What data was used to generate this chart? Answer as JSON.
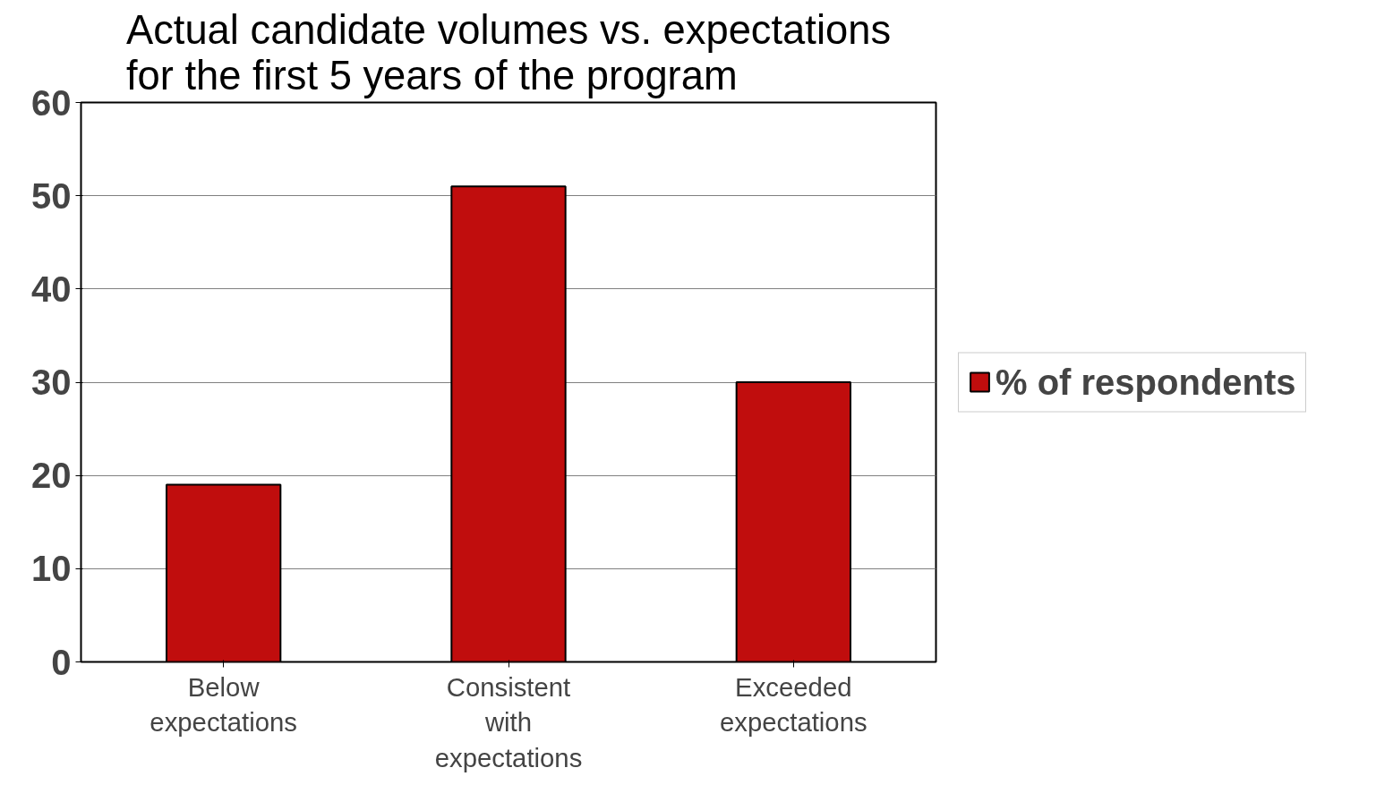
{
  "chart_data": {
    "type": "bar",
    "title": "Actual candidate volumes vs. expectations for the first 5 years of the program",
    "categories": [
      "Below expectations",
      "Consistent with expectations",
      "Exceeded expectations"
    ],
    "series": [
      {
        "name": "% of respondents",
        "color": "#c00d0d",
        "values": [
          19,
          51,
          30
        ]
      }
    ],
    "ylim": [
      0,
      60
    ],
    "yticks": [
      0,
      10,
      20,
      30,
      40,
      50,
      60
    ],
    "grid": "y",
    "legend": "right"
  }
}
